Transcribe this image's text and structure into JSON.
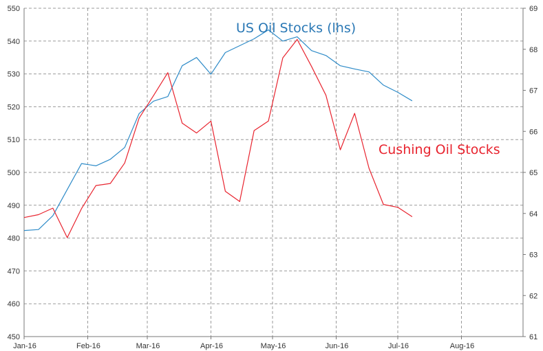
{
  "chart_data": {
    "type": "line",
    "x": [
      "2016-01-01",
      "2016-01-08",
      "2016-01-15",
      "2016-01-22",
      "2016-01-29",
      "2016-02-05",
      "2016-02-12",
      "2016-02-19",
      "2016-02-26",
      "2016-03-04",
      "2016-03-11",
      "2016-03-18",
      "2016-03-25",
      "2016-04-01",
      "2016-04-08",
      "2016-04-15",
      "2016-04-22",
      "2016-04-29",
      "2016-05-06",
      "2016-05-13",
      "2016-05-20",
      "2016-05-27",
      "2016-06-03",
      "2016-06-10",
      "2016-06-17",
      "2016-06-24",
      "2016-07-01",
      "2016-07-08"
    ],
    "x_ticks": [
      "Jan-16",
      "Feb-16",
      "Mar-16",
      "Apr-16",
      "May-16",
      "Jun-16",
      "Jul-16",
      "Aug-16"
    ],
    "x_range": [
      "2016-01-01",
      "2016-08-31"
    ],
    "left_ticks": [
      "450",
      "460",
      "470",
      "480",
      "490",
      "500",
      "510",
      "520",
      "530",
      "540",
      "550"
    ],
    "right_ticks": [
      "61",
      "62",
      "63",
      "64",
      "65",
      "66",
      "67",
      "68",
      "69"
    ],
    "ylim_left": [
      450,
      550
    ],
    "ylim_right": [
      61,
      69
    ],
    "grid": "horizontal-dashed and vertical-dashed",
    "series": [
      {
        "name": "US Oil Stocks (lhs)",
        "axis": "left",
        "color": "#2e8bc8",
        "label_color": "#2a78b5",
        "values": [
          482.3,
          482.6,
          486.8,
          494.8,
          502.7,
          502.0,
          504.0,
          507.6,
          517.9,
          521.7,
          523.1,
          532.5,
          535.0,
          529.9,
          536.5,
          538.6,
          540.7,
          543.4,
          540.0,
          541.3,
          537.1,
          535.6,
          532.5,
          531.5,
          530.6,
          526.6,
          524.4,
          521.8
        ]
      },
      {
        "name": "Cushing Oil Stocks",
        "axis": "right",
        "color": "#e8232e",
        "label_color": "#e8232e",
        "values": [
          63.9,
          63.97,
          64.13,
          63.41,
          64.12,
          64.68,
          64.73,
          65.23,
          66.32,
          66.87,
          67.43,
          66.2,
          65.96,
          66.25,
          64.54,
          64.29,
          66.02,
          66.25,
          67.79,
          68.24,
          67.58,
          66.88,
          65.55,
          66.44,
          65.1,
          64.22,
          64.15,
          63.92
        ]
      }
    ]
  }
}
